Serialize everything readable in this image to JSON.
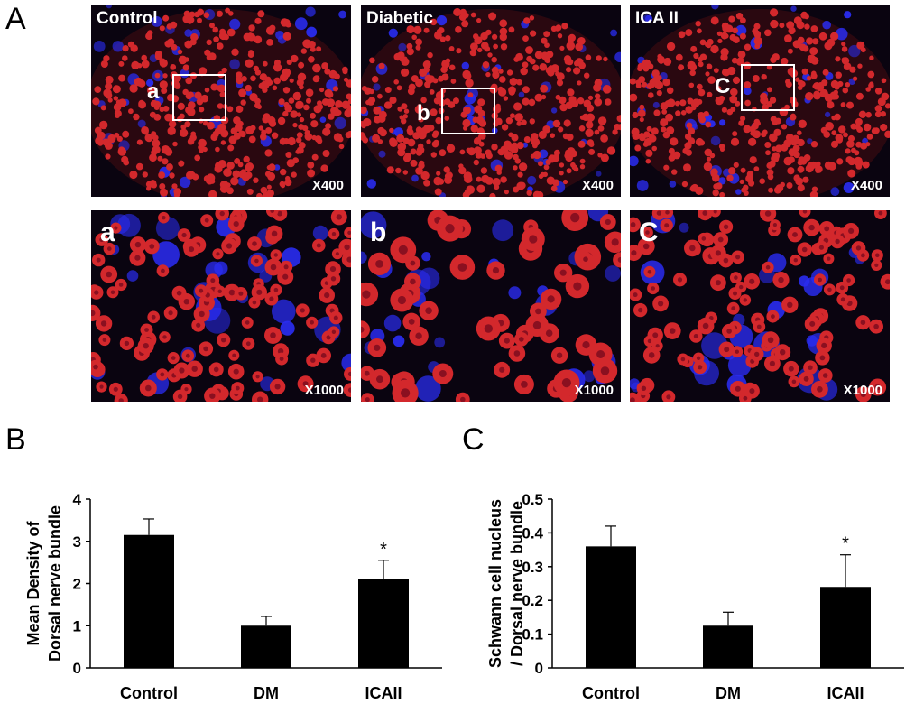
{
  "figure": {
    "panel_letters": {
      "a": "A",
      "b": "B",
      "c": "C"
    },
    "micrographs": [
      {
        "title": "Control",
        "roi_label": "a",
        "magnification": "X400"
      },
      {
        "title": "Diabetic",
        "roi_label": "b",
        "magnification": "X400"
      },
      {
        "title": "ICA II",
        "roi_label": "C",
        "magnification": "X400"
      },
      {
        "sub_label": "a",
        "magnification": "X1000"
      },
      {
        "sub_label": "b",
        "magnification": "X1000"
      },
      {
        "sub_label": "C",
        "magnification": "X1000"
      }
    ],
    "colors": {
      "axon": "#d3282c",
      "nucleus": "#2a2cf0",
      "background": "#0a0410",
      "bar": "#000000"
    }
  },
  "chart_data": [
    {
      "type": "bar",
      "panel": "B",
      "ylabel_lines": [
        "Mean Density of",
        "Dorsal nerve bundle"
      ],
      "categories": [
        "Control",
        "DM",
        "ICAII"
      ],
      "values": [
        3.15,
        1.0,
        2.1
      ],
      "errors": [
        0.38,
        0.22,
        0.45
      ],
      "significance": [
        "",
        "",
        "*"
      ],
      "ylim": [
        0,
        4
      ],
      "yticks": [
        "0",
        "1",
        "2",
        "3",
        "4"
      ]
    },
    {
      "type": "bar",
      "panel": "C",
      "ylabel_lines": [
        "Schwann cell nucleus",
        "/ Dorsal nerve bundle"
      ],
      "categories": [
        "Control",
        "DM",
        "ICAII"
      ],
      "values": [
        0.36,
        0.125,
        0.24
      ],
      "errors": [
        0.06,
        0.04,
        0.095
      ],
      "significance": [
        "",
        "",
        "*"
      ],
      "ylim": [
        0,
        0.5
      ],
      "yticks": [
        "0",
        "0.1",
        "0.2",
        "0.3",
        "0.4",
        "0.5"
      ]
    }
  ]
}
